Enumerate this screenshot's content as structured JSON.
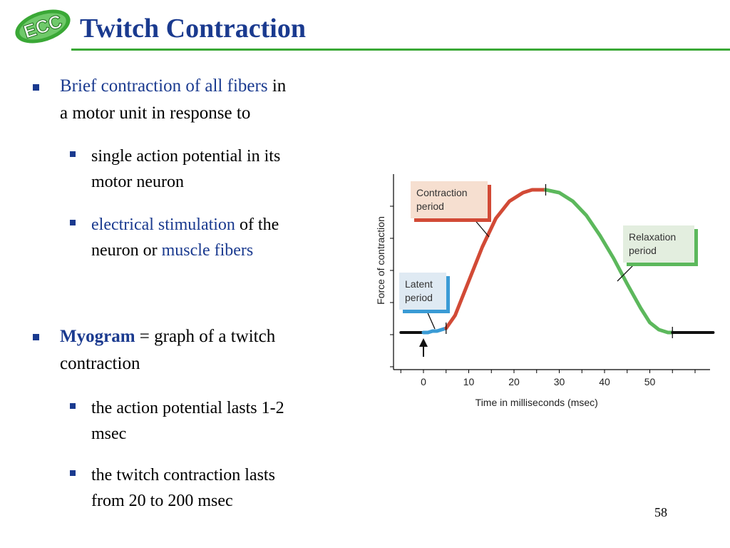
{
  "slide": {
    "title": "Twitch Contraction",
    "logo_text": "ECC",
    "page_number": "58",
    "colors": {
      "title": "#1a3a8f",
      "rule": "#3aa836",
      "accent_text": "#1a3a8f",
      "latent": "#3a9bd5",
      "contraction": "#d24a36",
      "relaxation": "#5cb85c"
    }
  },
  "bullets": {
    "b1": {
      "highlight": "Brief contraction of all fibers",
      "rest_line1": " in",
      "line2": "a motor unit in response to"
    },
    "b1_sub1": {
      "line1": "single action potential in its",
      "line2": "motor neuron"
    },
    "b1_sub2": {
      "highlight": "electrical stimulation",
      "rest": " of the",
      "line2_prefix": "neuron or ",
      "line2_highlight": "muscle fibers"
    },
    "b2": {
      "term": "Myogram",
      "rest": " = graph of a twitch",
      "line2": "contraction"
    },
    "b2_sub1": {
      "line1": "the action potential lasts 1-2",
      "line2": "msec"
    },
    "b2_sub2": {
      "line1": "the twitch contraction lasts",
      "line2": "from 20 to 200 msec"
    }
  },
  "chart_data": {
    "type": "line",
    "xlabel": "Time in milliseconds (msec)",
    "ylabel": "Force of contraction",
    "x_ticks": [
      "0",
      "10",
      "20",
      "30",
      "40",
      "50"
    ],
    "x_tick_values": [
      0,
      10,
      20,
      30,
      40,
      50
    ],
    "xlim": [
      -5,
      64
    ],
    "ylim": [
      0,
      1
    ],
    "y_ticks_count": 6,
    "grid": false,
    "stimulus_x": 0,
    "segments": [
      {
        "phase": "baseline",
        "x": [
          -5,
          0
        ],
        "y": [
          0,
          0
        ]
      },
      {
        "phase": "latent",
        "x": [
          0,
          1,
          2,
          3,
          4,
          5
        ],
        "y": [
          0,
          0,
          0.01,
          0.01,
          0.02,
          0.03
        ]
      },
      {
        "phase": "contraction",
        "x": [
          5,
          7,
          10,
          13,
          16,
          19,
          22,
          24,
          26,
          27
        ],
        "y": [
          0.03,
          0.12,
          0.36,
          0.6,
          0.8,
          0.92,
          0.98,
          1.0,
          1.0,
          1.0
        ]
      },
      {
        "phase": "relaxation",
        "x": [
          27,
          30,
          33,
          36,
          39,
          42,
          45,
          48,
          50,
          52,
          54,
          55
        ],
        "y": [
          1.0,
          0.98,
          0.92,
          0.82,
          0.68,
          0.52,
          0.34,
          0.17,
          0.07,
          0.02,
          0.0,
          0.0
        ]
      },
      {
        "phase": "baseline",
        "x": [
          55,
          64
        ],
        "y": [
          0,
          0
        ]
      }
    ],
    "phase_markers_x": [
      5,
      27,
      55
    ],
    "labels": [
      {
        "phase": "latent",
        "text_lines": [
          "Latent",
          "period"
        ]
      },
      {
        "phase": "contraction",
        "text_lines": [
          "Contraction",
          "period"
        ]
      },
      {
        "phase": "relaxation",
        "text_lines": [
          "Relaxation",
          "period"
        ]
      }
    ]
  }
}
